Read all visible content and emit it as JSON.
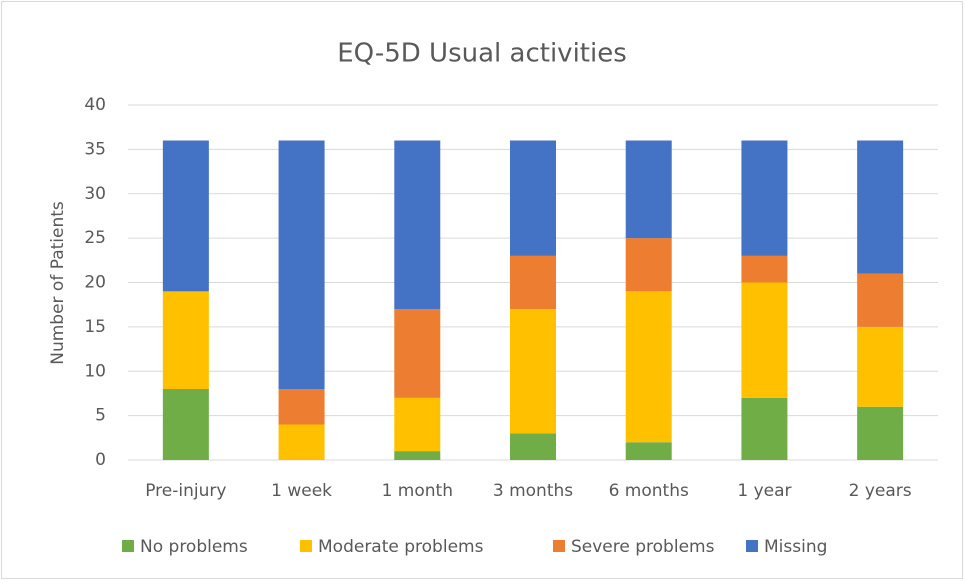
{
  "chart_data": {
    "type": "bar",
    "stacked": true,
    "title": "EQ-5D Usual activities",
    "y_label": "Number of Patients",
    "categories": [
      "Pre-injury",
      "1 week",
      "1 month",
      "3 months",
      "6 months",
      "1 year",
      "2 years"
    ],
    "series": [
      {
        "name": "No problems",
        "color": "#70ad47",
        "values": [
          8,
          0,
          1,
          3,
          2,
          7,
          6
        ]
      },
      {
        "name": "Moderate problems",
        "color": "#ffc000",
        "values": [
          11,
          4,
          6,
          14,
          17,
          13,
          9
        ]
      },
      {
        "name": "Severe problems",
        "color": "#ed7d31",
        "values": [
          0,
          4,
          10,
          6,
          6,
          3,
          6
        ]
      },
      {
        "name": "Missing",
        "color": "#4472c4",
        "values": [
          17,
          28,
          19,
          13,
          11,
          13,
          15
        ]
      }
    ],
    "ylim": [
      0,
      40
    ],
    "yticks": [
      0,
      5,
      10,
      15,
      20,
      25,
      30,
      35,
      40
    ],
    "grid": true,
    "legend": "bottom"
  }
}
